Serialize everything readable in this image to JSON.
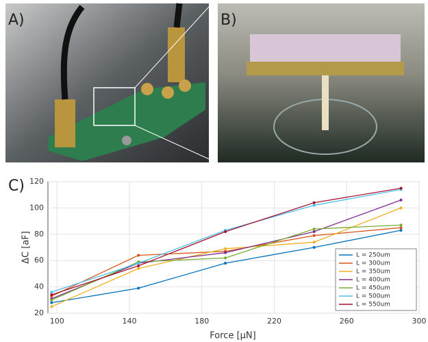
{
  "panels": [
    "A)",
    "B)",
    "C)"
  ],
  "chart_data": {
    "type": "line",
    "x_label": "Force [μN]",
    "y_label": "ΔC [aF]",
    "x": [
      97,
      145,
      193,
      242,
      290
    ],
    "series": [
      {
        "name": "L = 250um",
        "color": "#0072bd",
        "values": [
          28,
          39,
          58,
          70,
          83
        ]
      },
      {
        "name": "L = 300um",
        "color": "#d95319",
        "values": [
          33,
          64,
          67,
          79,
          85
        ]
      },
      {
        "name": "L = 350um",
        "color": "#edb120",
        "values": [
          25,
          54,
          69,
          74,
          100
        ]
      },
      {
        "name": "L = 400um",
        "color": "#7e2f8e",
        "values": [
          31,
          58,
          66,
          82,
          106
        ]
      },
      {
        "name": "L = 450um",
        "color": "#77ac30",
        "values": [
          30,
          59,
          62,
          84,
          87
        ]
      },
      {
        "name": "L = 500um",
        "color": "#4dbeee",
        "values": [
          36,
          58,
          83,
          102,
          114
        ]
      },
      {
        "name": "L = 550um",
        "color": "#a2142f",
        "values": [
          34,
          56,
          82,
          104,
          115
        ]
      }
    ],
    "xlim": [
      95,
      300
    ],
    "xticks": [
      100,
      140,
      180,
      220,
      260,
      300
    ],
    "ylim": [
      20,
      120
    ],
    "yticks": [
      20,
      40,
      60,
      80,
      100,
      120
    ],
    "grid": true,
    "legend": "lower right"
  }
}
